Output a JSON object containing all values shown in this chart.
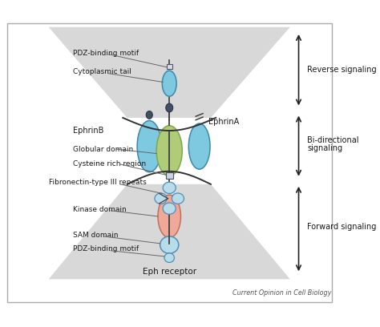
{
  "background_color": "#ffffff",
  "caption": "Current Opinion in Cell Biology",
  "labels": {
    "pdz_top": "PDZ-binding motif",
    "cyto_tail": "Cytoplasmic tail",
    "ephrinB": "EphrinB",
    "ephrinA": "EphrinA",
    "globular": "Globular domain",
    "cysteine": "Cysteine rich region",
    "fibronectin": "Fibronectin-type III repeats",
    "kinase": "Kinase domain",
    "sam": "SAM domain",
    "pdz_bottom": "PDZ-binding motif",
    "eph_receptor": "Eph receptor",
    "reverse": "Reverse signaling",
    "bidirectional_1": "Bi-directional",
    "bidirectional_2": "signaling",
    "forward": "Forward signaling"
  },
  "colors": {
    "blue_ellipse": "#7ec8e0",
    "green_ellipse": "#b0cc78",
    "salmon_ellipse": "#f0a898",
    "light_blue_circle": "#b8dcea",
    "cell_gray": "#d8d8d8",
    "stem": "#404040",
    "label": "#1a1a1a",
    "border": "#888888",
    "membrane_line": "#333333"
  }
}
